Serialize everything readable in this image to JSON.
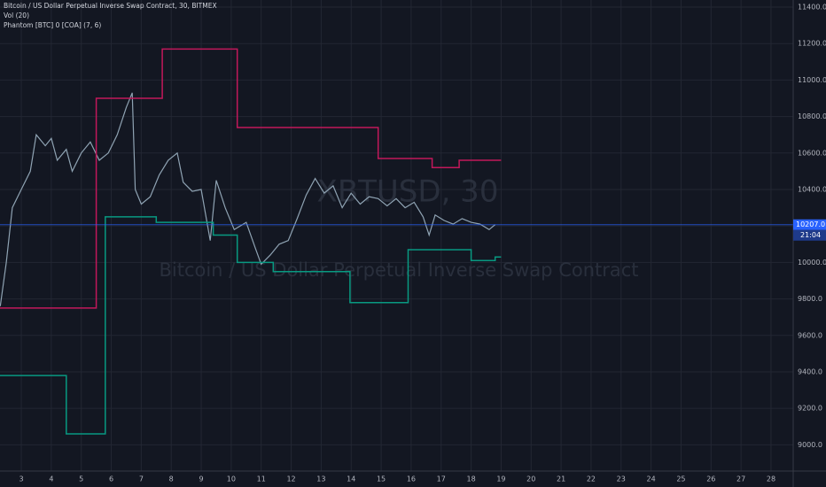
{
  "chart_data": {
    "type": "line",
    "title": "Bitcoin / US Dollar Perpetual Inverse Swap Contract, 30, BITMEX",
    "indicators": [
      "Vol (20)",
      "Phantom [BTC] 0 [COA] (7, 6)"
    ],
    "watermark": "XBTUSD, 30",
    "watermark_subtitle": "Bitcoin / US Dollar Perpetual Inverse Swap Contract",
    "grid": true,
    "xlim": [
      2.29,
      28.74
    ],
    "ylim": [
      8856,
      11439
    ],
    "xticks": [
      3,
      4,
      5,
      6,
      7,
      8,
      9,
      10,
      11,
      12,
      13,
      14,
      15,
      16,
      17,
      18,
      19,
      20,
      21,
      22,
      23,
      24,
      25,
      26,
      27,
      28
    ],
    "yticks": [
      {
        "value": 9000,
        "label": "9000.0"
      },
      {
        "value": 9200,
        "label": "9200.0"
      },
      {
        "value": 9400,
        "label": "9400.0"
      },
      {
        "value": 9600,
        "label": "9600.0"
      },
      {
        "value": 9800,
        "label": "9800.0"
      },
      {
        "value": 10000,
        "label": "10000.0"
      },
      {
        "value": 10200,
        "label": "10200.0"
      },
      {
        "value": 10400,
        "label": "10400.0"
      },
      {
        "value": 10600,
        "label": "10600.0"
      },
      {
        "value": 10800,
        "label": "10800.0"
      },
      {
        "value": 11000,
        "label": "11000.0"
      },
      {
        "value": 11200,
        "label": "11200.0"
      },
      {
        "value": 11400,
        "label": "11400.0"
      }
    ],
    "last_price": {
      "value": 10207,
      "label": "10207.0"
    },
    "countdown": "21:04",
    "series": [
      {
        "color": "#8fa3b3",
        "x": [
          2.3,
          2.5,
          2.7,
          3.0,
          3.3,
          3.5,
          3.8,
          4.0,
          4.2,
          4.5,
          4.7,
          5.0,
          5.3,
          5.6,
          5.9,
          6.2,
          6.5,
          6.7,
          6.8,
          7.0,
          7.3,
          7.6,
          7.9,
          8.2,
          8.4,
          8.7,
          9.0,
          9.3,
          9.5,
          9.8,
          10.1,
          10.5,
          10.8,
          11.0,
          11.3,
          11.6,
          11.9,
          12.2,
          12.5,
          12.8,
          13.1,
          13.4,
          13.7,
          14.0,
          14.3,
          14.6,
          14.9,
          15.2,
          15.5,
          15.8,
          16.1,
          16.4,
          16.6,
          16.8,
          17.1,
          17.4,
          17.7,
          18.0,
          18.3,
          18.6,
          18.8
        ],
        "values": [
          9760,
          10000,
          10300,
          10400,
          10500,
          10700,
          10640,
          10680,
          10560,
          10620,
          10500,
          10600,
          10660,
          10560,
          10600,
          10700,
          10850,
          10930,
          10400,
          10320,
          10360,
          10480,
          10560,
          10600,
          10440,
          10390,
          10400,
          10120,
          10450,
          10300,
          10180,
          10220,
          10080,
          9990,
          10040,
          10100,
          10120,
          10240,
          10370,
          10460,
          10380,
          10420,
          10300,
          10380,
          10320,
          10360,
          10350,
          10310,
          10350,
          10300,
          10330,
          10250,
          10150,
          10260,
          10230,
          10210,
          10240,
          10220,
          10210,
          10180,
          10207
        ]
      },
      {
        "color": "#c2185b",
        "x": [
          2.29,
          5.5,
          5.5,
          7.7,
          7.7,
          10.2,
          10.2,
          14.9,
          14.9,
          16.7,
          16.7,
          17.6,
          17.6,
          19.0
        ],
        "values": [
          9750,
          9750,
          10900,
          10900,
          11170,
          11170,
          10740,
          10740,
          10570,
          10570,
          10520,
          10520,
          10560,
          10560
        ]
      },
      {
        "color": "#089981",
        "x": [
          2.29,
          4.5,
          4.5,
          5.8,
          5.8,
          7.5,
          7.5,
          9.4,
          9.4,
          10.2,
          10.2,
          11.4,
          11.4,
          13.96,
          13.96,
          15.9,
          15.9,
          18.0,
          18.0,
          18.8,
          18.8,
          19.0
        ],
        "values": [
          9380,
          9380,
          9060,
          9060,
          10250,
          10250,
          10220,
          10220,
          10150,
          10150,
          10000,
          10000,
          9950,
          9950,
          9780,
          9780,
          10070,
          10070,
          10010,
          10010,
          10030,
          10030
        ]
      }
    ]
  }
}
